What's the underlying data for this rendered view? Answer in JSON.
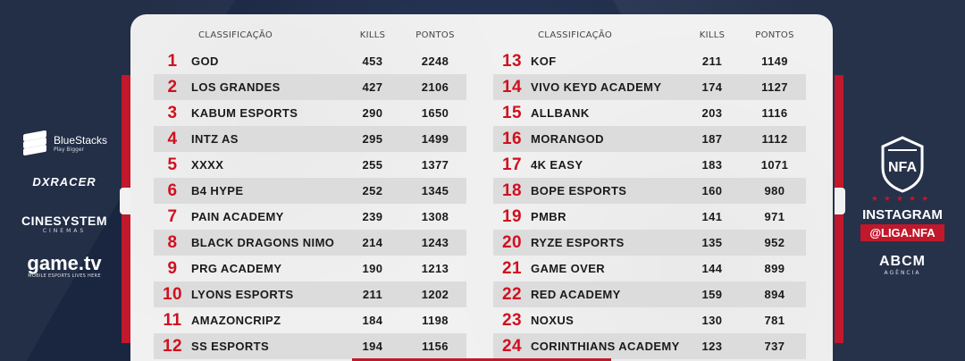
{
  "table_left": {
    "headers": {
      "classification": "Classificação",
      "kills": "Kills",
      "points": "Pontos"
    },
    "rows": [
      {
        "pos": "1",
        "team": "GOD",
        "kills": "453",
        "points": "2248"
      },
      {
        "pos": "2",
        "team": "LOS GRANDES",
        "kills": "427",
        "points": "2106"
      },
      {
        "pos": "3",
        "team": "KABUM ESPORTS",
        "kills": "290",
        "points": "1650"
      },
      {
        "pos": "4",
        "team": "INTZ AS",
        "kills": "295",
        "points": "1499"
      },
      {
        "pos": "5",
        "team": "XXXX",
        "kills": "255",
        "points": "1377"
      },
      {
        "pos": "6",
        "team": "B4 HYPE",
        "kills": "252",
        "points": "1345"
      },
      {
        "pos": "7",
        "team": "PAIN ACADEMY",
        "kills": "239",
        "points": "1308"
      },
      {
        "pos": "8",
        "team": "BLACK DRAGONS NIMO",
        "kills": "214",
        "points": "1243"
      },
      {
        "pos": "9",
        "team": "PRG ACADEMY",
        "kills": "190",
        "points": "1213"
      },
      {
        "pos": "10",
        "team": "LYONS ESPORTS",
        "kills": "211",
        "points": "1202"
      },
      {
        "pos": "11",
        "team": "AMAZONCRIPZ",
        "kills": "184",
        "points": "1198"
      },
      {
        "pos": "12",
        "team": "SS ESPORTS",
        "kills": "194",
        "points": "1156"
      }
    ]
  },
  "table_right": {
    "headers": {
      "classification": "Classificação",
      "kills": "Kills",
      "points": "Pontos"
    },
    "rows": [
      {
        "pos": "13",
        "team": "KOF",
        "kills": "211",
        "points": "1149"
      },
      {
        "pos": "14",
        "team": "VIVO KEYD ACADEMY",
        "kills": "174",
        "points": "1127"
      },
      {
        "pos": "15",
        "team": "ALLBANK",
        "kills": "203",
        "points": "1116"
      },
      {
        "pos": "16",
        "team": "MORANGOD",
        "kills": "187",
        "points": "1112"
      },
      {
        "pos": "17",
        "team": "4K EASY",
        "kills": "183",
        "points": "1071"
      },
      {
        "pos": "18",
        "team": "BOPE ESPORTS",
        "kills": "160",
        "points": "980"
      },
      {
        "pos": "19",
        "team": "PMBR",
        "kills": "141",
        "points": "971"
      },
      {
        "pos": "20",
        "team": "RYZE ESPORTS",
        "kills": "135",
        "points": "952"
      },
      {
        "pos": "21",
        "team": "GAME OVER",
        "kills": "144",
        "points": "899"
      },
      {
        "pos": "22",
        "team": "RED ACADEMY",
        "kills": "159",
        "points": "894"
      },
      {
        "pos": "23",
        "team": "NOXUS",
        "kills": "130",
        "points": "781"
      },
      {
        "pos": "24",
        "team": "CORINTHIANS ACADEMY",
        "kills": "123",
        "points": "737"
      }
    ]
  },
  "sponsors_left": {
    "bluestacks": {
      "name": "BlueStacks",
      "tagline": "Play Bigger",
      "icon": "bluestacks-logo-icon"
    },
    "dxracer": "DXRACER",
    "cinesystem": {
      "name": "CINESYSTEM",
      "tagline": "CINEMAS"
    },
    "gametv": {
      "name": "game.tv",
      "tagline": "MOBILE ESPORTS LIVES HERE"
    }
  },
  "sponsors_right": {
    "nfa_logo": {
      "text": "NFA",
      "icon": "nfa-shield-icon"
    },
    "stars": "★★★★★",
    "instagram_label": "INSTAGRAM",
    "instagram_handle": "@LIGA.NFA",
    "abcm": {
      "name": "ABCM",
      "tagline": "AGÊNCIA"
    }
  },
  "colors": {
    "accent": "#c2182b",
    "position_red": "#d0101f",
    "panel": "#f1f1f1",
    "background": "#1d2a44"
  }
}
